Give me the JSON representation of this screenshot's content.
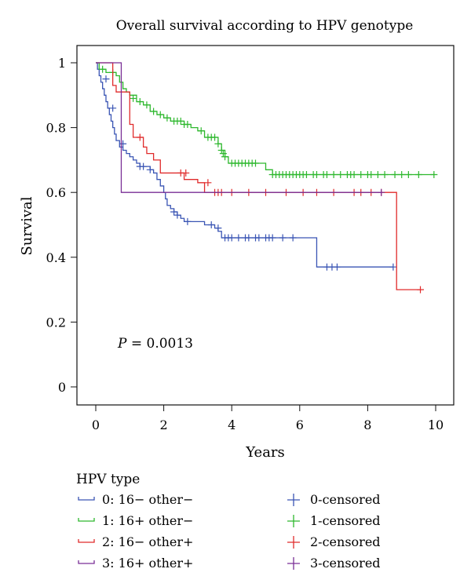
{
  "chart_data": {
    "type": "line",
    "subtype": "kaplan-meier",
    "title": "Overall survival according to HPV genotype",
    "xlabel": "Years",
    "ylabel": "Survival",
    "xlim": [
      0,
      10
    ],
    "ylim": [
      0,
      1
    ],
    "xticks": [
      0,
      2,
      4,
      6,
      8,
      10
    ],
    "yticks": [
      0,
      0.2,
      0.4,
      0.6,
      0.8,
      1
    ],
    "xtick_labels": [
      "0",
      "2",
      "4",
      "6",
      "8",
      "10"
    ],
    "ytick_labels": [
      "0",
      "0.2",
      "0.4",
      "0.6",
      "0.8",
      "1"
    ],
    "grid": false,
    "annotation": {
      "prefix": "P",
      "text": " = 0.0013"
    },
    "legend": {
      "title": "HPV type",
      "placement": "bottom",
      "strata": [
        "0: 16− other−",
        "1: 16+ other−",
        "2: 16− other+",
        "3: 16+ other+"
      ],
      "censored": [
        "0-censored",
        "1-censored",
        "2-censored",
        "3-censored"
      ]
    },
    "series": [
      {
        "color": "#3a55b4",
        "step": [
          [
            0,
            1
          ],
          [
            0.05,
            0.98
          ],
          [
            0.1,
            0.96
          ],
          [
            0.15,
            0.94
          ],
          [
            0.2,
            0.92
          ],
          [
            0.25,
            0.9
          ],
          [
            0.3,
            0.88
          ],
          [
            0.35,
            0.86
          ],
          [
            0.4,
            0.84
          ],
          [
            0.45,
            0.82
          ],
          [
            0.5,
            0.8
          ],
          [
            0.55,
            0.78
          ],
          [
            0.6,
            0.76
          ],
          [
            0.7,
            0.74
          ],
          [
            0.8,
            0.73
          ],
          [
            0.9,
            0.72
          ],
          [
            1.0,
            0.71
          ],
          [
            1.1,
            0.7
          ],
          [
            1.2,
            0.69
          ],
          [
            1.3,
            0.68
          ],
          [
            1.6,
            0.67
          ],
          [
            1.7,
            0.66
          ],
          [
            1.8,
            0.64
          ],
          [
            1.9,
            0.62
          ],
          [
            2.0,
            0.6
          ],
          [
            2.05,
            0.58
          ],
          [
            2.1,
            0.56
          ],
          [
            2.2,
            0.55
          ],
          [
            2.3,
            0.54
          ],
          [
            2.4,
            0.53
          ],
          [
            2.5,
            0.52
          ],
          [
            2.6,
            0.51
          ],
          [
            3.0,
            0.51
          ],
          [
            3.2,
            0.5
          ],
          [
            3.5,
            0.49
          ],
          [
            3.6,
            0.48
          ],
          [
            3.7,
            0.46
          ],
          [
            6.5,
            0.46
          ],
          [
            6.5,
            0.37
          ],
          [
            8.75,
            0.37
          ]
        ],
        "censored": [
          [
            0.3,
            0.95
          ],
          [
            0.5,
            0.86
          ],
          [
            0.8,
            0.75
          ],
          [
            1.3,
            0.68
          ],
          [
            1.4,
            0.68
          ],
          [
            1.6,
            0.67
          ],
          [
            2.3,
            0.54
          ],
          [
            2.4,
            0.53
          ],
          [
            2.7,
            0.51
          ],
          [
            3.4,
            0.5
          ],
          [
            3.6,
            0.49
          ],
          [
            3.8,
            0.46
          ],
          [
            3.9,
            0.46
          ],
          [
            4.0,
            0.46
          ],
          [
            4.2,
            0.46
          ],
          [
            4.4,
            0.46
          ],
          [
            4.5,
            0.46
          ],
          [
            4.7,
            0.46
          ],
          [
            4.8,
            0.46
          ],
          [
            5.0,
            0.46
          ],
          [
            5.1,
            0.46
          ],
          [
            5.2,
            0.46
          ],
          [
            5.5,
            0.46
          ],
          [
            5.8,
            0.46
          ],
          [
            6.8,
            0.37
          ],
          [
            6.95,
            0.37
          ],
          [
            7.1,
            0.37
          ],
          [
            8.75,
            0.37
          ]
        ]
      },
      {
        "color": "#2eb82e",
        "step": [
          [
            0,
            1
          ],
          [
            0.1,
            0.98
          ],
          [
            0.3,
            0.97
          ],
          [
            0.6,
            0.96
          ],
          [
            0.7,
            0.94
          ],
          [
            0.8,
            0.92
          ],
          [
            0.9,
            0.91
          ],
          [
            1.0,
            0.9
          ],
          [
            1.2,
            0.88
          ],
          [
            1.4,
            0.87
          ],
          [
            1.6,
            0.85
          ],
          [
            1.8,
            0.84
          ],
          [
            2.0,
            0.83
          ],
          [
            2.2,
            0.82
          ],
          [
            2.6,
            0.81
          ],
          [
            2.8,
            0.8
          ],
          [
            3.0,
            0.79
          ],
          [
            3.2,
            0.77
          ],
          [
            3.4,
            0.77
          ],
          [
            3.6,
            0.75
          ],
          [
            3.7,
            0.73
          ],
          [
            3.8,
            0.71
          ],
          [
            3.9,
            0.69
          ],
          [
            4.8,
            0.69
          ],
          [
            5.0,
            0.67
          ],
          [
            5.2,
            0.655
          ],
          [
            9.95,
            0.655
          ]
        ],
        "censored": [
          [
            0.2,
            0.98
          ],
          [
            0.5,
            0.97
          ],
          [
            1.1,
            0.89
          ],
          [
            1.3,
            0.88
          ],
          [
            1.5,
            0.87
          ],
          [
            1.7,
            0.85
          ],
          [
            1.9,
            0.84
          ],
          [
            2.1,
            0.83
          ],
          [
            2.3,
            0.82
          ],
          [
            2.4,
            0.82
          ],
          [
            2.5,
            0.82
          ],
          [
            2.6,
            0.81
          ],
          [
            2.7,
            0.81
          ],
          [
            3.1,
            0.79
          ],
          [
            3.3,
            0.77
          ],
          [
            3.4,
            0.77
          ],
          [
            3.5,
            0.77
          ],
          [
            3.6,
            0.75
          ],
          [
            3.7,
            0.73
          ],
          [
            3.75,
            0.72
          ],
          [
            3.8,
            0.71
          ],
          [
            4.0,
            0.69
          ],
          [
            4.1,
            0.69
          ],
          [
            4.2,
            0.69
          ],
          [
            4.3,
            0.69
          ],
          [
            4.4,
            0.69
          ],
          [
            4.5,
            0.69
          ],
          [
            4.6,
            0.69
          ],
          [
            4.7,
            0.69
          ],
          [
            5.2,
            0.655
          ],
          [
            5.3,
            0.655
          ],
          [
            5.4,
            0.655
          ],
          [
            5.5,
            0.655
          ],
          [
            5.6,
            0.655
          ],
          [
            5.7,
            0.655
          ],
          [
            5.8,
            0.655
          ],
          [
            5.9,
            0.655
          ],
          [
            6.0,
            0.655
          ],
          [
            6.1,
            0.655
          ],
          [
            6.2,
            0.655
          ],
          [
            6.4,
            0.655
          ],
          [
            6.5,
            0.655
          ],
          [
            6.7,
            0.655
          ],
          [
            6.8,
            0.655
          ],
          [
            7.0,
            0.655
          ],
          [
            7.2,
            0.655
          ],
          [
            7.4,
            0.655
          ],
          [
            7.5,
            0.655
          ],
          [
            7.6,
            0.655
          ],
          [
            7.8,
            0.655
          ],
          [
            8.0,
            0.655
          ],
          [
            8.1,
            0.655
          ],
          [
            8.3,
            0.655
          ],
          [
            8.5,
            0.655
          ],
          [
            8.8,
            0.655
          ],
          [
            9.0,
            0.655
          ],
          [
            9.2,
            0.655
          ],
          [
            9.5,
            0.655
          ],
          [
            9.95,
            0.655
          ]
        ]
      },
      {
        "color": "#e02b2b",
        "step": [
          [
            0,
            1
          ],
          [
            0.5,
            1
          ],
          [
            0.5,
            0.93
          ],
          [
            0.6,
            0.91
          ],
          [
            1.0,
            0.81
          ],
          [
            1.1,
            0.77
          ],
          [
            1.4,
            0.74
          ],
          [
            1.5,
            0.72
          ],
          [
            1.7,
            0.7
          ],
          [
            1.9,
            0.66
          ],
          [
            2.6,
            0.66
          ],
          [
            2.6,
            0.64
          ],
          [
            3.0,
            0.63
          ],
          [
            3.2,
            0.6
          ],
          [
            8.85,
            0.6
          ],
          [
            8.85,
            0.3
          ],
          [
            9.55,
            0.3
          ]
        ],
        "censored": [
          [
            1.3,
            0.77
          ],
          [
            2.5,
            0.66
          ],
          [
            2.65,
            0.66
          ],
          [
            3.3,
            0.63
          ],
          [
            3.5,
            0.6
          ],
          [
            3.6,
            0.6
          ],
          [
            3.7,
            0.6
          ],
          [
            4.0,
            0.6
          ],
          [
            4.5,
            0.6
          ],
          [
            5.0,
            0.6
          ],
          [
            5.6,
            0.6
          ],
          [
            6.1,
            0.6
          ],
          [
            6.5,
            0.6
          ],
          [
            7.0,
            0.6
          ],
          [
            7.6,
            0.6
          ],
          [
            7.8,
            0.6
          ],
          [
            8.1,
            0.6
          ],
          [
            8.4,
            0.6
          ],
          [
            9.55,
            0.3
          ]
        ]
      },
      {
        "color": "#7a2f96",
        "step": [
          [
            0,
            1
          ],
          [
            0.75,
            1
          ],
          [
            0.75,
            0.6
          ],
          [
            8.4,
            0.6
          ]
        ],
        "censored": [
          [
            8.4,
            0.6
          ]
        ]
      }
    ]
  }
}
